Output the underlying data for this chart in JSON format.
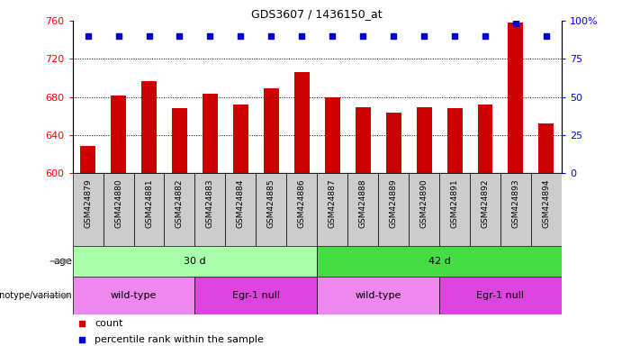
{
  "title": "GDS3607 / 1436150_at",
  "samples": [
    "GSM424879",
    "GSM424880",
    "GSM424881",
    "GSM424882",
    "GSM424883",
    "GSM424884",
    "GSM424885",
    "GSM424886",
    "GSM424887",
    "GSM424888",
    "GSM424889",
    "GSM424890",
    "GSM424891",
    "GSM424892",
    "GSM424893",
    "GSM424894"
  ],
  "counts": [
    628,
    681,
    697,
    668,
    683,
    672,
    689,
    706,
    680,
    669,
    663,
    669,
    668,
    672,
    758,
    652
  ],
  "percentile_ranks": [
    90,
    90,
    90,
    90,
    90,
    90,
    90,
    90,
    90,
    90,
    90,
    90,
    90,
    90,
    98,
    90
  ],
  "ylim": [
    600,
    760
  ],
  "yticks": [
    600,
    640,
    680,
    720,
    760
  ],
  "y2ticks": [
    0,
    25,
    50,
    75,
    100
  ],
  "bar_color": "#cc0000",
  "dot_color": "#0000cc",
  "age_groups": [
    {
      "label": "30 d",
      "start": 0,
      "end": 7,
      "color": "#aaffaa"
    },
    {
      "label": "42 d",
      "start": 8,
      "end": 15,
      "color": "#44dd44"
    }
  ],
  "genotype_groups": [
    {
      "label": "wild-type",
      "start": 0,
      "end": 3,
      "color": "#ee88ee"
    },
    {
      "label": "Egr-1 null",
      "start": 4,
      "end": 7,
      "color": "#dd44dd"
    },
    {
      "label": "wild-type",
      "start": 8,
      "end": 11,
      "color": "#ee88ee"
    },
    {
      "label": "Egr-1 null",
      "start": 12,
      "end": 15,
      "color": "#dd44dd"
    }
  ],
  "legend_count_label": "count",
  "legend_pct_label": "percentile rank within the sample",
  "xlabel_age": "age",
  "xlabel_genotype": "genotype/variation",
  "background_color": "#ffffff",
  "tick_area_color": "#cccccc"
}
